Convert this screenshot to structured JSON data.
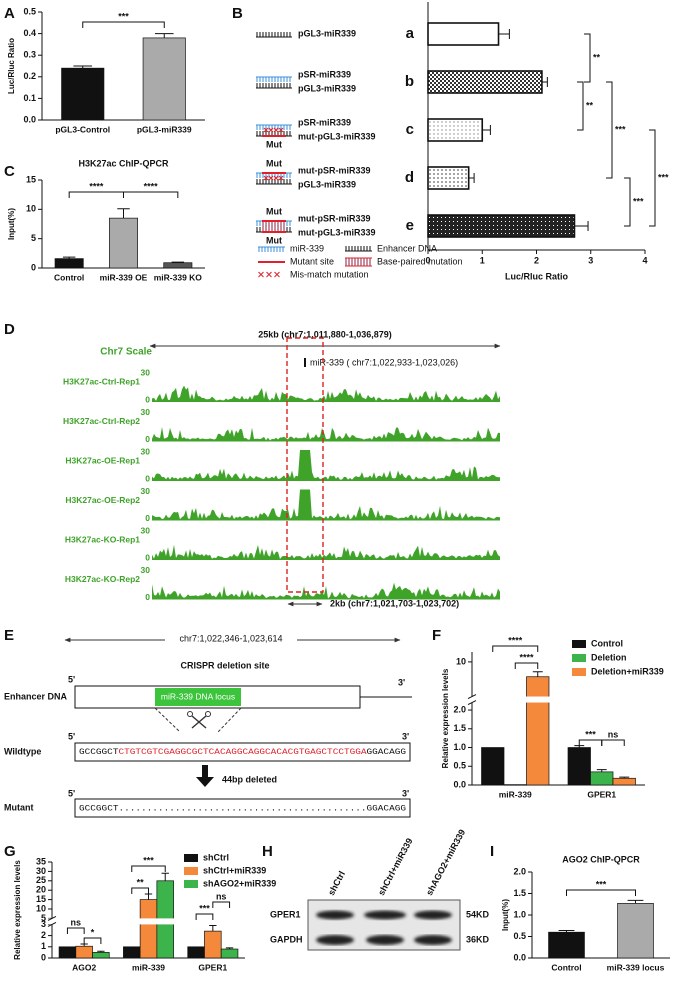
{
  "panel_labels": [
    "A",
    "B",
    "C",
    "D",
    "E",
    "F",
    "G",
    "H",
    "I"
  ],
  "chart_data": [
    {
      "type": "bar",
      "categories": [
        "pGL3-Control",
        "pGL3-miR339"
      ],
      "values": [
        0.24,
        0.38
      ],
      "errors": [
        0.01,
        0.02
      ],
      "colors": [
        "#111111",
        "#aaaaaa"
      ],
      "ylabel": "Luc/Rluc Ratio",
      "ylim": [
        0,
        0.5
      ],
      "yticks": [
        {
          "value": 0,
          "label": "0.0"
        },
        0.1,
        0.2,
        0.3,
        0.4,
        0.5
      ],
      "annotations": [
        "***"
      ]
    },
    {
      "type": "barh",
      "categories": [
        "a",
        "b",
        "c",
        "d",
        "e"
      ],
      "values": [
        1.3,
        2.1,
        1.0,
        0.75,
        2.7
      ],
      "errors": [
        0.2,
        0.1,
        0.15,
        0.1,
        0.25
      ],
      "colors": [
        "#ffffff",
        "#333333",
        "#888888",
        "#666666",
        "#222222"
      ],
      "xlabel": "Luc/Rluc Ratio",
      "xlim": [
        0,
        4
      ],
      "xticks": [
        0,
        1,
        2,
        3,
        4
      ],
      "annotations": [
        "**",
        "**",
        "***",
        "***",
        "***"
      ]
    },
    {
      "type": "bar",
      "title": "H3K27ac ChIP-QPCR",
      "categories": [
        "Control",
        "miR-339 OE",
        "miR-339 KO"
      ],
      "values": [
        1.6,
        8.5,
        0.9
      ],
      "errors": [
        0.25,
        1.6,
        0.1
      ],
      "colors": [
        "#111111",
        "#aaaaaa",
        "#555555"
      ],
      "ylabel": "Input(%)",
      "ylim": [
        0,
        15
      ],
      "yticks": [
        0,
        5,
        10,
        15
      ],
      "annotations": [
        "****",
        "****"
      ]
    },
    {
      "type": "bar",
      "categories": [
        "miR-339",
        "GPER1"
      ],
      "ylabel": "Relative expression levels",
      "series": [
        {
          "name": "Control",
          "color": "#111111",
          "values": [
            1,
            1
          ],
          "errors": [
            null,
            0.05
          ]
        },
        {
          "name": "Deletion",
          "color": "#3cb44b",
          "values": [
            0.01,
            0.35
          ],
          "errors": [
            null,
            0.06
          ]
        },
        {
          "name": "Deletion+miR339",
          "color": "#f4893b",
          "values": [
            7,
            0.18
          ],
          "errors": [
            1,
            0.03
          ]
        }
      ],
      "ylim": [
        0,
        12
      ],
      "axis_break": [
        2.2,
        3
      ],
      "yticks": [
        {
          "value": 0,
          "label": "0.0"
        },
        {
          "value": 0.5,
          "label": "0.5"
        },
        {
          "value": 1,
          "label": "1.0"
        },
        {
          "value": 1.5,
          "label": "1.5"
        },
        {
          "value": 2,
          "label": "2.0"
        },
        10
      ],
      "annotations": [
        "****",
        "****",
        "***",
        "ns"
      ]
    },
    {
      "type": "bar",
      "categories": [
        "AGO2",
        "miR-339",
        "GPER1"
      ],
      "ylabel": "Relative expression levels",
      "series": [
        {
          "name": "shCtrl",
          "color": "#111111",
          "values": [
            1,
            1,
            1
          ],
          "errors": [
            null,
            null,
            null
          ]
        },
        {
          "name": "shCtrl+miR339",
          "color": "#f4893b",
          "values": [
            1.05,
            15,
            2.4
          ],
          "errors": [
            0.2,
            3,
            0.5
          ]
        },
        {
          "name": "shAGO2+miR339",
          "color": "#3cb44b",
          "values": [
            0.5,
            25,
            0.8
          ],
          "errors": [
            0.1,
            4,
            0.1
          ]
        }
      ],
      "ylim": [
        0,
        35
      ],
      "axis_break": [
        3,
        5
      ],
      "yticks": [
        0,
        1,
        2,
        3,
        5,
        10,
        15,
        20,
        25,
        30,
        35
      ],
      "annotations": [
        "ns",
        "*",
        "**",
        "***",
        "***",
        "ns"
      ]
    },
    {
      "type": "bar",
      "title": "AGO2 ChIP-QPCR",
      "categories": [
        "Control",
        "miR-339 locus"
      ],
      "values": [
        0.6,
        1.27
      ],
      "errors": [
        0.04,
        0.07
      ],
      "colors": [
        "#111111",
        "#aaaaaa"
      ],
      "ylabel": "Input(%)",
      "ylim": [
        0,
        2
      ],
      "yticks": [
        {
          "value": 0,
          "label": "0.0"
        },
        {
          "value": 0.5,
          "label": "0.5"
        },
        {
          "value": 1,
          "label": "1.0"
        },
        {
          "value": 1.5,
          "label": "1.5"
        },
        {
          "value": 2,
          "label": "2.0"
        }
      ],
      "annotations": [
        "***"
      ]
    }
  ],
  "constructs": [
    {
      "labels": [
        "pGL3-miR339"
      ]
    },
    {
      "labels": [
        "pSR-miR339",
        "pGL3-miR339"
      ]
    },
    {
      "labels": [
        "pSR-miR339",
        "mut-pGL3-miR339"
      ],
      "mut": [
        "Mut"
      ]
    },
    {
      "labels": [
        "mut-pSR-miR339",
        "pGL3-miR339"
      ],
      "mut": [
        "Mut"
      ]
    },
    {
      "labels": [
        "mut-pSR-miR339",
        "mut-pGL3-miR339"
      ],
      "mut": [
        "Mut",
        "Mut"
      ]
    }
  ],
  "legend_b": [
    "miR-339",
    "Enhancer DNA",
    "Mutant site",
    "Base-paired mutation",
    "Mis-match mutation"
  ],
  "tracks": {
    "header": "25kb (chr7:1,011,880-1,036,879)",
    "scale": "Chr7 Scale",
    "marker": "miR-339 ( chr7:1,022,933-1,023,026)",
    "names": [
      "H3K27ac-Ctrl-Rep1",
      "H3K27ac-Ctrl-Rep2",
      "H3K27ac-OE-Rep1",
      "H3K27ac-OE-Rep2",
      "H3K27ac-KO-Rep1",
      "H3K27ac-KO-Rep2"
    ],
    "scale_max": "30",
    "scale_min": "0",
    "region": "2kb (chr7:1,021,703-1,023,702)"
  },
  "crispr": {
    "range": "chr7:1,022,346-1,023,614",
    "title": "CRISPR deletion site",
    "enhancer": "Enhancer DNA",
    "locus": "miR-339 DNA locus",
    "five": "5'",
    "three": "3'",
    "wildtype": "Wildtype",
    "wt_left": "GCCGGCT",
    "wt_deleted": "CTGTCGTCGAGGCGCTCACAGGCAGGCACACGTGAGCTCCTGGA",
    "wt_right": "GGACAGG",
    "deleted": "44bp deleted",
    "mutant": "Mutant",
    "mut_seq": "GCCGGCT............................................GGACAGG"
  },
  "blot": {
    "lanes": [
      "shCtrl",
      "shCtrl+miR339",
      "shAGO2+miR339"
    ],
    "rows": [
      {
        "name": "GPER1",
        "size": "54KD"
      },
      {
        "name": "GAPDH",
        "size": "36KD"
      }
    ]
  }
}
